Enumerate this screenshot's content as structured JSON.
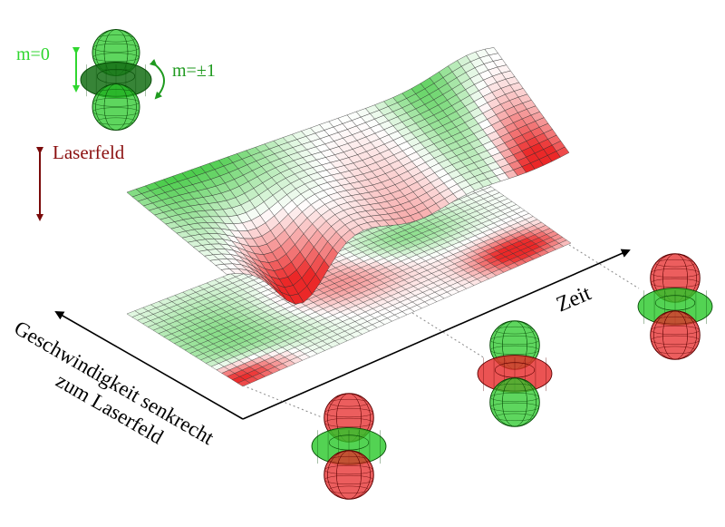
{
  "legend": {
    "m0_label": "m=0",
    "m1_label": "m=±1",
    "laser_label": "Laserfeld"
  },
  "axes": {
    "time_label": "Zeit",
    "velocity_label_line1": "Geschwindigkeit senkrecht",
    "velocity_label_line2": "zum Laserfeld"
  },
  "colors": {
    "green": "#22bb22",
    "dark_green": "#1e8f1e",
    "red": "#e83030",
    "dark_red": "#7a0a0a",
    "text_green": "#2fd62f",
    "text_dark_green": "#1f9a1f",
    "text_red": "#8b1010"
  },
  "orbitals": [
    {
      "name": "orbital-legend",
      "state": "m0-green"
    },
    {
      "name": "orbital-time-1",
      "state": "red-caps-green-ring"
    },
    {
      "name": "orbital-time-2",
      "state": "green-caps-red-ring"
    },
    {
      "name": "orbital-time-3",
      "state": "red-caps-green-ring"
    }
  ]
}
